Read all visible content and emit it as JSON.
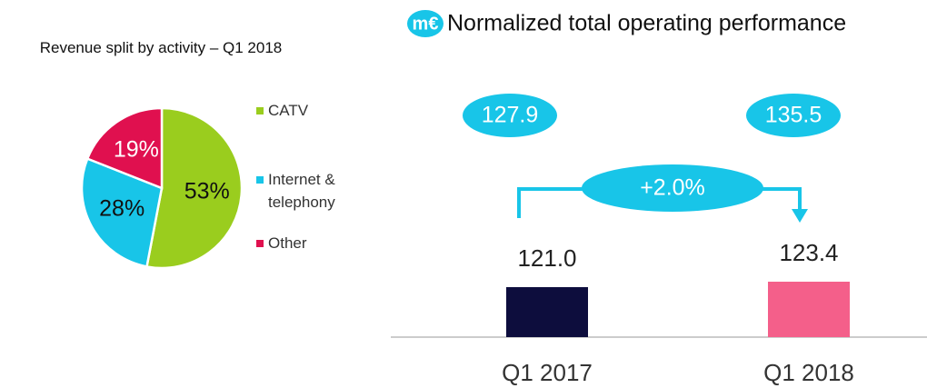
{
  "chart_data": [
    {
      "type": "pie",
      "title": "Revenue split by activity – Q1 2018",
      "categories": [
        "CATV",
        "Internet & telephony",
        "Other"
      ],
      "values": [
        53,
        28,
        19
      ],
      "value_labels": [
        "53%",
        "28%",
        "19%"
      ],
      "colors": [
        "#9acd1e",
        "#18c5e8",
        "#e0104f"
      ]
    },
    {
      "type": "bar",
      "unit": "m€",
      "title": "Normalized total operating performance",
      "categories": [
        "Q1 2017",
        "Q1 2018"
      ],
      "values": [
        121.0,
        123.4
      ],
      "value_labels": [
        "121.0",
        "123.4"
      ],
      "colors": [
        "#0d0d3d",
        "#f45f8a"
      ],
      "ylim": [
        99,
        159
      ],
      "annotations": [
        "127.9",
        "135.5",
        "+2.0%"
      ]
    }
  ]
}
